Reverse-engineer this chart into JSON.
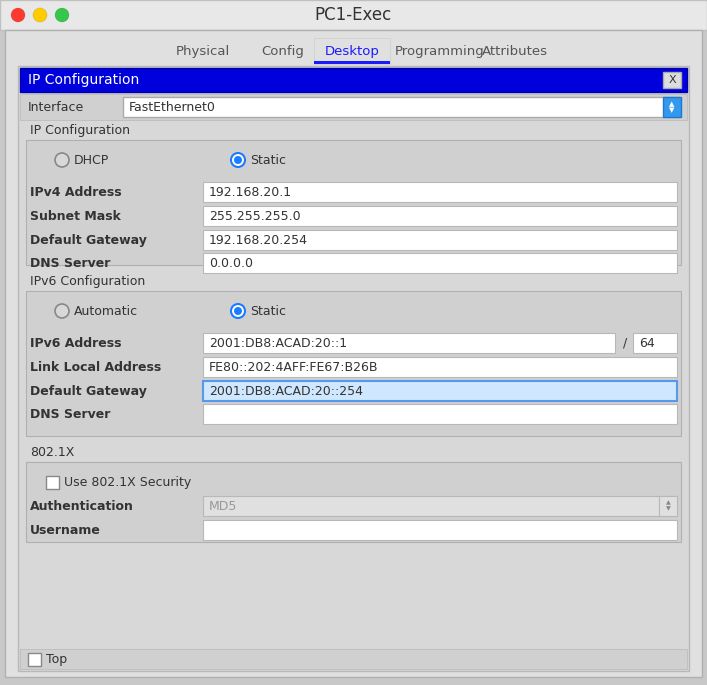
{
  "title": "PC1-Exec",
  "bg_outer": "#ececec",
  "bg_main": "#e8e8e8",
  "bg_content": "#d8d8d8",
  "tabs": [
    "Physical",
    "Config",
    "Desktop",
    "Programming",
    "Attributes"
  ],
  "active_tab": "Desktop",
  "header_bar_color": "#0000dd",
  "header_text": "IP Configuration",
  "interface_label": "Interface",
  "interface_value": "FastEthernet0",
  "ip_config_section": "IP Configuration",
  "ipv4_fields": [
    {
      "label": "IPv4 Address",
      "value": "192.168.20.1",
      "bold": true
    },
    {
      "label": "Subnet Mask",
      "value": "255.255.255.0",
      "bold": true
    },
    {
      "label": "Default Gateway",
      "value": "192.168.20.254",
      "bold": true
    },
    {
      "label": "DNS Server",
      "value": "0.0.0.0",
      "bold": true
    }
  ],
  "ipv6_config_section": "IPv6 Configuration",
  "ipv6_fields": [
    {
      "label": "IPv6 Address",
      "value": "2001:DB8:ACAD:20::1",
      "has_prefix": true,
      "prefix": "64",
      "bold": true,
      "highlighted": false
    },
    {
      "label": "Link Local Address",
      "value": "FE80::202:4AFF:FE67:B26B",
      "has_prefix": false,
      "bold": true,
      "highlighted": false
    },
    {
      "label": "Default Gateway",
      "value": "2001:DB8:ACAD:20::254",
      "has_prefix": false,
      "bold": true,
      "highlighted": true
    },
    {
      "label": "DNS Server",
      "value": "",
      "has_prefix": false,
      "bold": true,
      "highlighted": false
    }
  ],
  "dot1x_section": "802.1X",
  "dot1x_checkbox": "Use 802.1X Security",
  "auth_label": "Authentication",
  "auth_value": "MD5",
  "username_label": "Username",
  "bottom_label": "Top",
  "traffic_lights": [
    "#ff3b30",
    "#ffcc00",
    "#34c749"
  ],
  "text_color": "#2a2a2a",
  "label_color": "#333333",
  "radio_blue": "#1a7dff",
  "field_white": "#ffffff",
  "field_highlight_bg": "#d0e8ff",
  "field_highlight_edge": "#5599ee",
  "field_disabled_bg": "#e0e0e0",
  "section_bg": "#d0d0d0",
  "tab_active_color": "#1a1aff"
}
